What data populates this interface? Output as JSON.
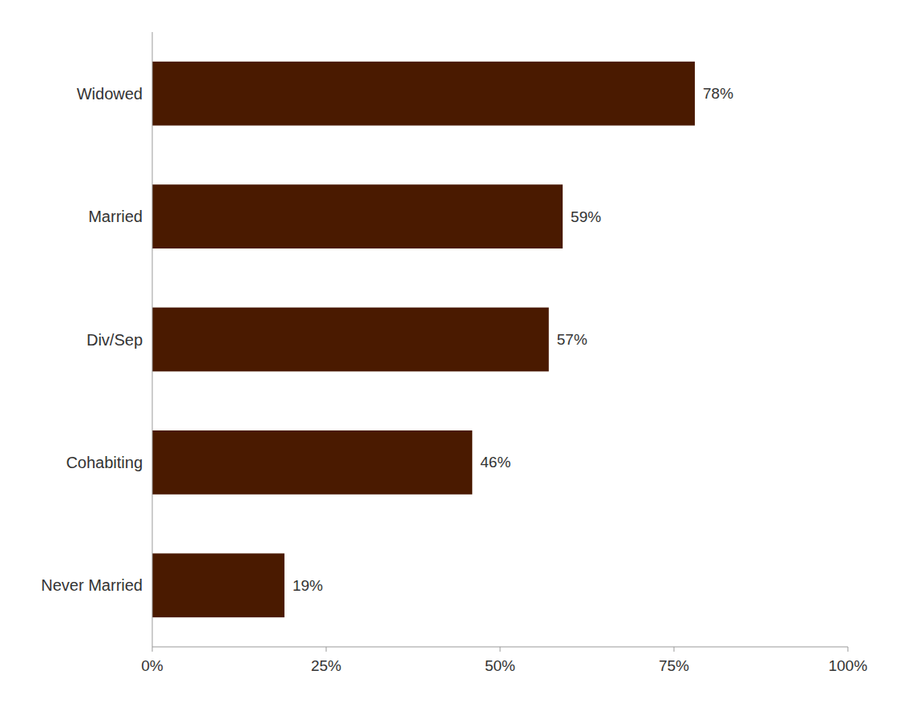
{
  "chart_data": {
    "type": "bar",
    "orientation": "horizontal",
    "categories": [
      "Never Married",
      "Cohabiting",
      "Div/Sep",
      "Married",
      "Widowed"
    ],
    "values": [
      19,
      46,
      57,
      59,
      78
    ],
    "value_labels": [
      "19%",
      "46%",
      "57%",
      "59%",
      "78%"
    ],
    "data_labels": true,
    "color": "#4a1a00",
    "xlim": [
      0,
      100
    ],
    "xticks": [
      {
        "value": 0,
        "label": "0%"
      },
      {
        "value": 25,
        "label": "25%"
      },
      {
        "value": 50,
        "label": "50%"
      },
      {
        "value": 75,
        "label": "75%"
      },
      {
        "value": 100,
        "label": "100%"
      }
    ],
    "grid": false
  }
}
